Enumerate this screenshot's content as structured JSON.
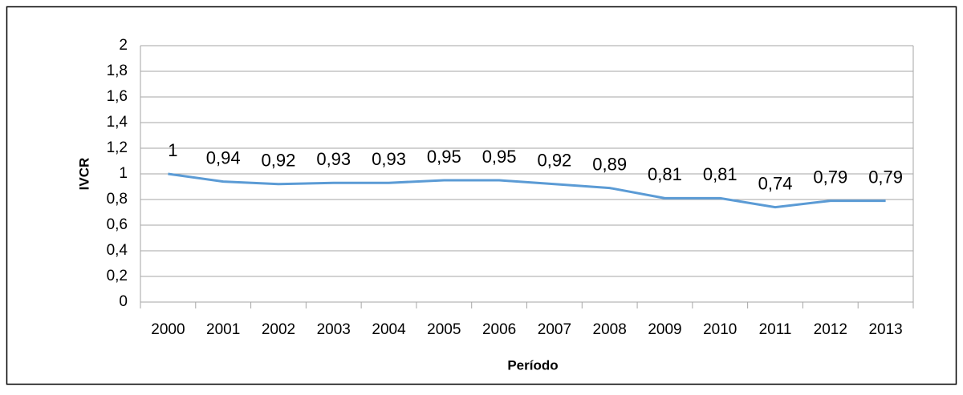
{
  "chart_data": {
    "type": "line",
    "x_label": "Período",
    "y_label": "IVCR",
    "categories": [
      "2000",
      "2001",
      "2002",
      "2003",
      "2004",
      "2005",
      "2006",
      "2007",
      "2008",
      "2009",
      "2010",
      "2011",
      "2012",
      "2013"
    ],
    "values": [
      1,
      0.94,
      0.92,
      0.93,
      0.93,
      0.95,
      0.95,
      0.92,
      0.89,
      0.81,
      0.81,
      0.74,
      0.79,
      0.79
    ],
    "value_labels": [
      "1",
      "0,94",
      "0,92",
      "0,93",
      "0,93",
      "0,95",
      "0,95",
      "0,92",
      "0,89",
      "0,81",
      "0,81",
      "0,74",
      "0,79",
      "0,79"
    ],
    "color": "#5b9bd5",
    "ylim": [
      0,
      2
    ],
    "yticks": [
      0,
      {
        "value": 0.2,
        "label": "0,2"
      },
      {
        "value": 0.4,
        "label": "0,4"
      },
      {
        "value": 0.6,
        "label": "0,6"
      },
      {
        "value": 0.8,
        "label": "0,8"
      },
      1,
      {
        "value": 1.2,
        "label": "1,2"
      },
      {
        "value": 1.4,
        "label": "1,4"
      },
      {
        "value": 1.6,
        "label": "1,6"
      },
      {
        "value": 1.8,
        "label": "1,8"
      },
      2
    ],
    "grid": true
  }
}
